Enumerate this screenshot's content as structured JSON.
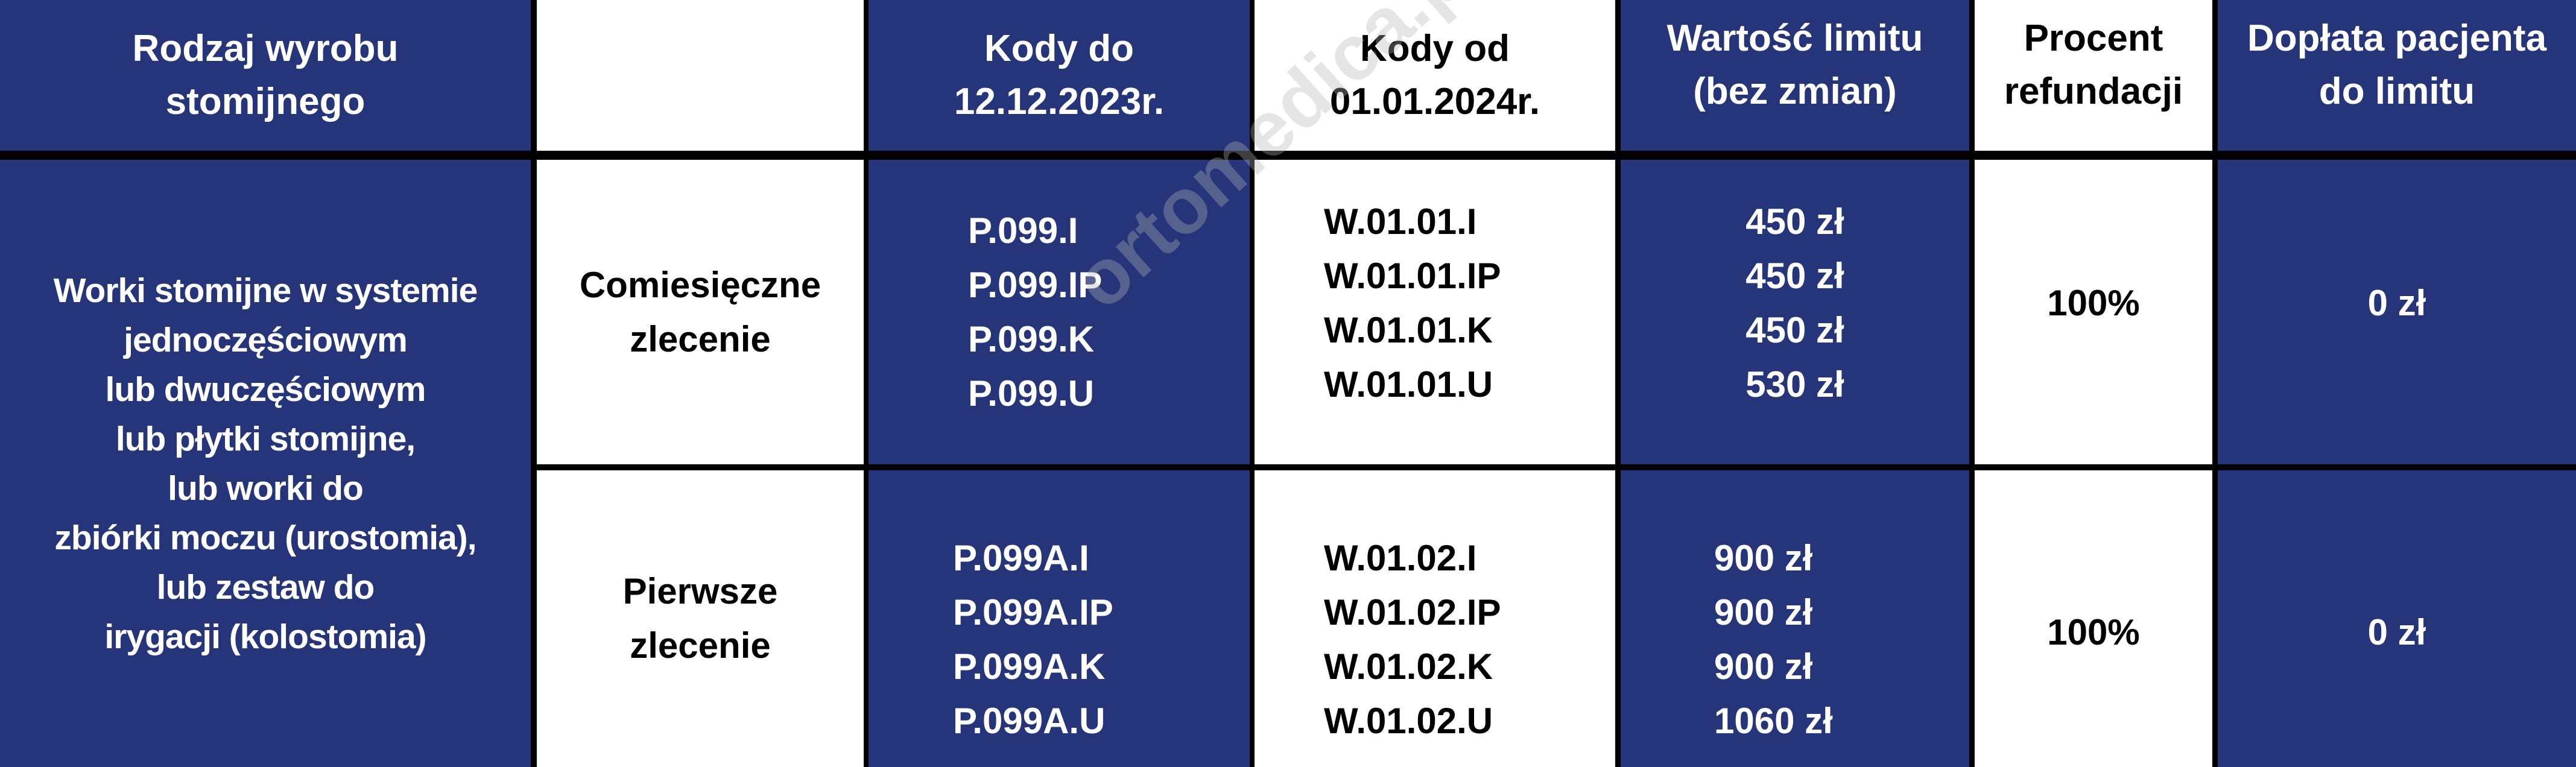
{
  "colors": {
    "header_bg": "#26357a",
    "alt_bg": "#ffffff",
    "border": "#000000"
  },
  "header": {
    "col1": [
      "Rodzaj wyrobu",
      "stomijnego"
    ],
    "col2": [],
    "col3": [
      "Kody do",
      "12.12.2023r."
    ],
    "col4": [
      "Kody od",
      "01.01.2024r."
    ],
    "col5": [
      "Wartość limitu",
      "(bez zmian)"
    ],
    "col6": [
      "Procent",
      "refundacji"
    ],
    "col7": [
      "Dopłata pacjenta",
      "do limitu"
    ]
  },
  "product": [
    "Worki stomijne w systemie",
    "jednoczęściowym",
    "lub dwuczęściowym",
    "lub płytki stomijne,",
    "lub worki do",
    "zbiórki moczu (urostomia),",
    "lub zestaw do",
    "irygacji (kolostomia)"
  ],
  "rows": [
    {
      "order_type": [
        "Comiesięczne",
        "zlecenie"
      ],
      "old_codes": [
        "P.099.I",
        "P.099.IP",
        "P.099.K",
        "P.099.U"
      ],
      "new_codes": [
        "W.01.01.I",
        "W.01.01.IP",
        "W.01.01.K",
        "W.01.01.U"
      ],
      "limits": [
        "450 zł",
        "450 zł",
        "450 zł",
        "530 zł"
      ],
      "refund": "100%",
      "copay": "0 zł"
    },
    {
      "order_type": [
        "Pierwsze",
        "zlecenie"
      ],
      "old_codes": [
        "P.099A.I",
        "P.099A.IP",
        "P.099A.K",
        "P.099A.U"
      ],
      "new_codes": [
        "W.01.02.I",
        "W.01.02.IP",
        "W.01.02.K",
        "W.01.02.U"
      ],
      "limits": [
        "900 zł",
        "900 zł",
        "900 zł",
        "1060 zł"
      ],
      "refund": "100%",
      "copay": "0 zł"
    }
  ],
  "watermark": "ortomedica.pl"
}
